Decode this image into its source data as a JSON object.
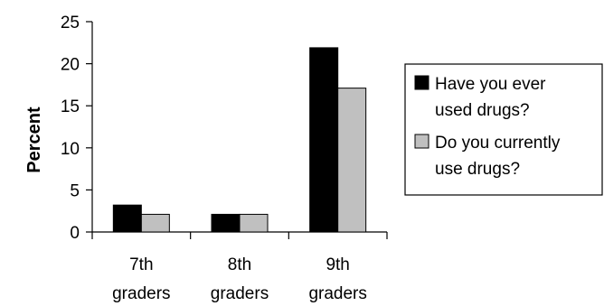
{
  "chart_data": {
    "type": "bar",
    "ylabel": "Percent",
    "ylim": [
      0,
      25
    ],
    "yticks": [
      0,
      5,
      10,
      15,
      20,
      25
    ],
    "categories": [
      [
        "7th",
        "graders"
      ],
      [
        "8th",
        "graders"
      ],
      [
        "9th",
        "graders"
      ]
    ],
    "series": [
      {
        "name": [
          "Have you ever",
          "used drugs?"
        ],
        "values": [
          3.2,
          2.1,
          21.9
        ],
        "color": "#000000"
      },
      {
        "name": [
          "Do you currently",
          "use drugs?"
        ],
        "values": [
          2.1,
          2.1,
          17.1
        ],
        "color": "#c0c0c0"
      }
    ],
    "grid": false,
    "legend": "right"
  }
}
